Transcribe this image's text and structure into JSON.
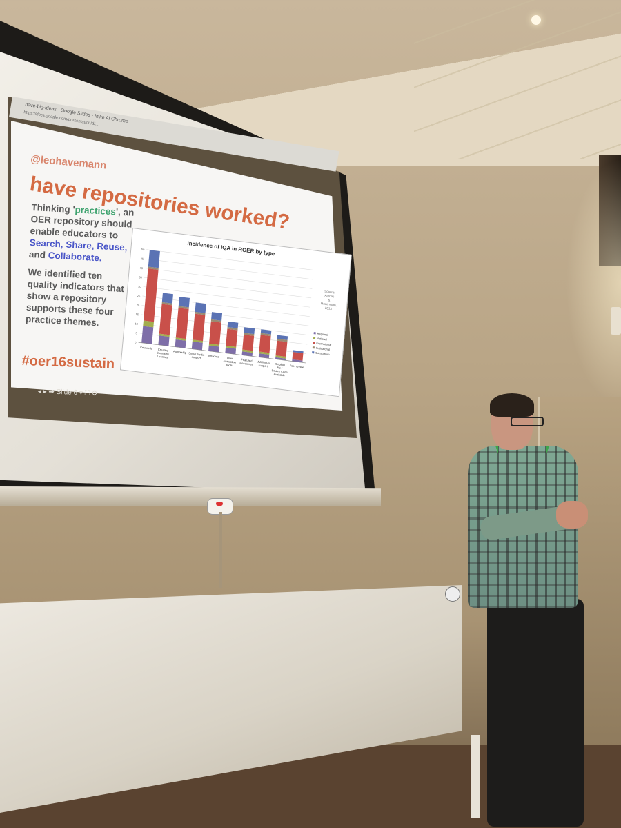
{
  "slide": {
    "browser_tab": "have-big-ideas - Google Slides - Mike Ai Chrome",
    "browser_url": "https://docs.google.com/presentation/d/...",
    "handle": "@leohavemann",
    "title": "have repositories worked?",
    "body_line1_pre": "Thinking '",
    "body_line1_green": "practices",
    "body_line1_post": "', an OER repository should enable educators to ",
    "body_blue1": "Search, Share, Reuse,",
    "body_and": " and ",
    "body_blue2": "Collaborate.",
    "body_para2": "We identified ten quality indicators that show a repository supports these four practice themes.",
    "hashtag": "#oer16sustain",
    "controls": "◂ ▸ ➡  Slide 6 ▾  ⛶  ⚙"
  },
  "chart_data": {
    "type": "bar",
    "title": "Incidence of IQA in ROER by type",
    "source_note": "Source: Atenas & Havemann, 2013",
    "categories": [
      "Keywords",
      "Creative Commons Licences",
      "Authorship",
      "Social Media support",
      "Metadata",
      "User evaluation tools",
      "Featured Resources",
      "Multilingual support",
      "Original file / Source Code Available",
      "Peer review"
    ],
    "series": [
      {
        "name": "Regional",
        "color": "#7e6ea8",
        "values": [
          9,
          5,
          4,
          4,
          3,
          3,
          2,
          2,
          1,
          1
        ]
      },
      {
        "name": "National",
        "color": "#a3ad4e",
        "values": [
          3,
          1,
          1,
          1,
          1,
          1,
          1,
          1,
          1,
          0
        ]
      },
      {
        "name": "International",
        "color": "#c9504a",
        "values": [
          28,
          16,
          16,
          14,
          12,
          9,
          8,
          9,
          8,
          4
        ]
      },
      {
        "name": "Institutional",
        "color": "#9a8a71",
        "values": [
          1,
          1,
          1,
          1,
          1,
          1,
          1,
          1,
          1,
          0
        ]
      },
      {
        "name": "Consortium",
        "color": "#5b73b4",
        "values": [
          9,
          5,
          5,
          5,
          4,
          3,
          3,
          2,
          2,
          1
        ]
      }
    ],
    "ylim": [
      0,
      50
    ],
    "yticks": [
      0,
      5,
      10,
      15,
      20,
      25,
      30,
      35,
      40,
      45,
      50
    ]
  }
}
